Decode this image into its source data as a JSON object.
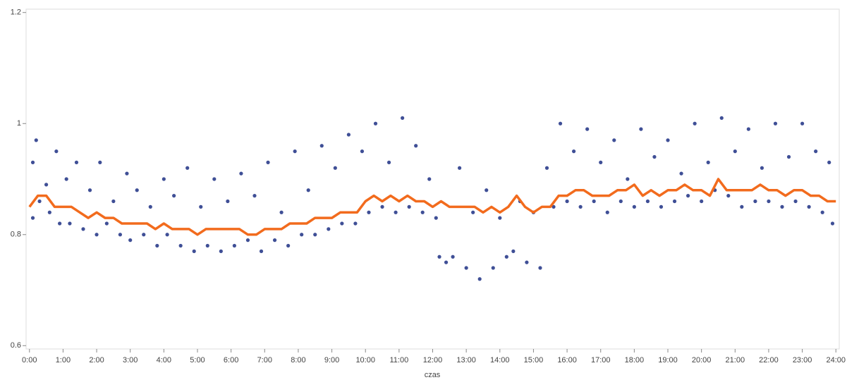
{
  "chart_data": {
    "type": "scatter",
    "x_label": "czas",
    "xlim": [
      -0.1,
      24.1
    ],
    "ylim": [
      0.594,
      1.206
    ],
    "xticks": [
      {
        "value": 0,
        "label": "0:00"
      },
      {
        "value": 1,
        "label": "1:00"
      },
      {
        "value": 2,
        "label": "2:00"
      },
      {
        "value": 3,
        "label": "3:00"
      },
      {
        "value": 4,
        "label": "4:00"
      },
      {
        "value": 5,
        "label": "5:00"
      },
      {
        "value": 6,
        "label": "6:00"
      },
      {
        "value": 7,
        "label": "7:00"
      },
      {
        "value": 8,
        "label": "8:00"
      },
      {
        "value": 9,
        "label": "9:00"
      },
      {
        "value": 10,
        "label": "10:00"
      },
      {
        "value": 11,
        "label": "11:00"
      },
      {
        "value": 12,
        "label": "12:00"
      },
      {
        "value": 13,
        "label": "13:00"
      },
      {
        "value": 14,
        "label": "14:00"
      },
      {
        "value": 15,
        "label": "15:00"
      },
      {
        "value": 16,
        "label": "16:00"
      },
      {
        "value": 17,
        "label": "17:00"
      },
      {
        "value": 18,
        "label": "18:00"
      },
      {
        "value": 19,
        "label": "19:00"
      },
      {
        "value": 20,
        "label": "20:00"
      },
      {
        "value": 21,
        "label": "21:00"
      },
      {
        "value": 22,
        "label": "22:00"
      },
      {
        "value": 23,
        "label": "23:00"
      },
      {
        "value": 24,
        "label": "24:00"
      }
    ],
    "yticks": [
      0.6,
      0.8,
      1,
      1.2
    ],
    "points": {
      "color": "#3f4f96",
      "x": [
        0.1,
        0.1,
        0.2,
        0.3,
        0.5,
        0.6,
        0.8,
        0.9,
        1.1,
        1.2,
        1.4,
        1.6,
        1.8,
        2.0,
        2.1,
        2.3,
        2.5,
        2.7,
        2.9,
        3.0,
        3.2,
        3.4,
        3.6,
        3.8,
        4.0,
        4.1,
        4.3,
        4.5,
        4.7,
        4.9,
        5.1,
        5.3,
        5.5,
        5.7,
        5.9,
        6.1,
        6.3,
        6.5,
        6.7,
        6.9,
        7.1,
        7.3,
        7.5,
        7.7,
        7.9,
        8.1,
        8.3,
        8.5,
        8.7,
        8.9,
        9.1,
        9.3,
        9.5,
        9.7,
        9.9,
        10.1,
        10.3,
        10.5,
        10.7,
        10.9,
        11.1,
        11.3,
        11.5,
        11.7,
        11.9,
        12.1,
        12.2,
        12.4,
        12.6,
        12.8,
        13.0,
        13.2,
        13.4,
        13.6,
        13.8,
        14.0,
        14.2,
        14.4,
        14.6,
        14.8,
        15.0,
        15.2,
        15.4,
        15.6,
        15.8,
        16.0,
        16.2,
        16.4,
        16.6,
        16.8,
        17.0,
        17.2,
        17.4,
        17.6,
        17.8,
        18.0,
        18.2,
        18.4,
        18.6,
        18.8,
        19.0,
        19.2,
        19.4,
        19.6,
        19.8,
        20.0,
        20.2,
        20.4,
        20.6,
        20.8,
        21.0,
        21.2,
        21.4,
        21.6,
        21.8,
        22.0,
        22.2,
        22.4,
        22.6,
        22.8,
        23.0,
        23.2,
        23.4,
        23.6,
        23.8,
        23.9
      ],
      "y": [
        0.83,
        0.93,
        0.97,
        0.86,
        0.89,
        0.84,
        0.95,
        0.82,
        0.9,
        0.82,
        0.93,
        0.81,
        0.88,
        0.8,
        0.93,
        0.82,
        0.86,
        0.8,
        0.91,
        0.79,
        0.88,
        0.8,
        0.85,
        0.78,
        0.9,
        0.8,
        0.87,
        0.78,
        0.92,
        0.77,
        0.85,
        0.78,
        0.9,
        0.77,
        0.86,
        0.78,
        0.91,
        0.79,
        0.87,
        0.77,
        0.93,
        0.79,
        0.84,
        0.78,
        0.95,
        0.8,
        0.88,
        0.8,
        0.96,
        0.81,
        0.92,
        0.82,
        0.98,
        0.82,
        0.95,
        0.84,
        1.0,
        0.85,
        0.93,
        0.84,
        1.01,
        0.85,
        0.96,
        0.84,
        0.9,
        0.83,
        0.76,
        0.75,
        0.76,
        0.92,
        0.74,
        0.84,
        0.72,
        0.88,
        0.74,
        0.83,
        0.76,
        0.77,
        0.86,
        0.75,
        0.84,
        0.74,
        0.92,
        0.85,
        1.0,
        0.86,
        0.95,
        0.85,
        0.99,
        0.86,
        0.93,
        0.84,
        0.97,
        0.86,
        0.9,
        0.85,
        0.99,
        0.86,
        0.94,
        0.85,
        0.97,
        0.86,
        0.91,
        0.87,
        1.0,
        0.86,
        0.93,
        0.88,
        1.01,
        0.87,
        0.95,
        0.85,
        0.99,
        0.86,
        0.92,
        0.86,
        1.0,
        0.85,
        0.94,
        0.86,
        1.0,
        0.85,
        0.95,
        0.84,
        0.93,
        0.82
      ]
    },
    "line": {
      "color": "#f26b1d",
      "x": [
        0,
        0.25,
        0.5,
        0.75,
        1,
        1.25,
        1.5,
        1.75,
        2,
        2.25,
        2.5,
        2.75,
        3,
        3.25,
        3.5,
        3.75,
        4,
        4.25,
        4.5,
        4.75,
        5,
        5.25,
        5.5,
        5.75,
        6,
        6.25,
        6.5,
        6.75,
        7,
        7.25,
        7.5,
        7.75,
        8,
        8.25,
        8.5,
        8.75,
        9,
        9.25,
        9.5,
        9.75,
        10,
        10.25,
        10.5,
        10.75,
        11,
        11.25,
        11.5,
        11.75,
        12,
        12.25,
        12.5,
        12.75,
        13,
        13.25,
        13.5,
        13.75,
        14,
        14.25,
        14.5,
        14.75,
        15,
        15.25,
        15.5,
        15.75,
        16,
        16.25,
        16.5,
        16.75,
        17,
        17.25,
        17.5,
        17.75,
        18,
        18.25,
        18.5,
        18.75,
        19,
        19.25,
        19.5,
        19.75,
        20,
        20.25,
        20.5,
        20.75,
        21,
        21.25,
        21.5,
        21.75,
        22,
        22.25,
        22.5,
        22.75,
        23,
        23.25,
        23.5,
        23.75,
        24
      ],
      "y": [
        0.85,
        0.87,
        0.87,
        0.85,
        0.85,
        0.85,
        0.84,
        0.83,
        0.84,
        0.83,
        0.83,
        0.82,
        0.82,
        0.82,
        0.82,
        0.81,
        0.82,
        0.81,
        0.81,
        0.81,
        0.8,
        0.81,
        0.81,
        0.81,
        0.81,
        0.81,
        0.8,
        0.8,
        0.81,
        0.81,
        0.81,
        0.82,
        0.82,
        0.82,
        0.83,
        0.83,
        0.83,
        0.84,
        0.84,
        0.84,
        0.86,
        0.87,
        0.86,
        0.87,
        0.86,
        0.87,
        0.86,
        0.86,
        0.85,
        0.86,
        0.85,
        0.85,
        0.85,
        0.85,
        0.84,
        0.85,
        0.84,
        0.85,
        0.87,
        0.85,
        0.84,
        0.85,
        0.85,
        0.87,
        0.87,
        0.88,
        0.88,
        0.87,
        0.87,
        0.87,
        0.88,
        0.88,
        0.89,
        0.87,
        0.88,
        0.87,
        0.88,
        0.88,
        0.89,
        0.88,
        0.88,
        0.87,
        0.9,
        0.88,
        0.88,
        0.88,
        0.88,
        0.89,
        0.88,
        0.88,
        0.87,
        0.88,
        0.88,
        0.87,
        0.87,
        0.86,
        0.86
      ]
    }
  }
}
